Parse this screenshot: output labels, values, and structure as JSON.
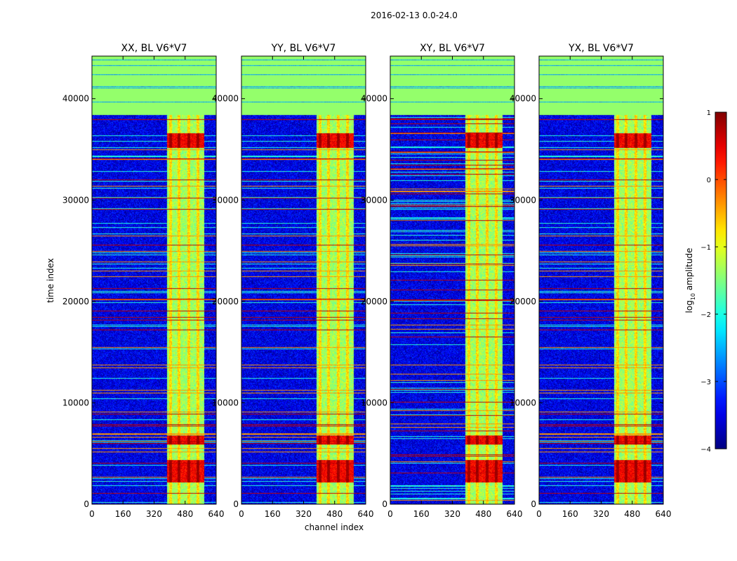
{
  "figure": {
    "suptitle": "2016-02-13 0.0-24.0",
    "xlabel": "channel index",
    "ylabel": "time index"
  },
  "chart_data": {
    "type": "heatmap",
    "panels": [
      {
        "title": "XX, BL V6*V7"
      },
      {
        "title": "YY, BL V6*V7"
      },
      {
        "title": "XY, BL V6*V7"
      },
      {
        "title": "YX, BL V6*V7"
      }
    ],
    "x_range": [
      0,
      640
    ],
    "x_ticks": [
      0,
      160,
      320,
      480,
      640
    ],
    "y_range": [
      0,
      44200
    ],
    "y_ticks": [
      0,
      10000,
      20000,
      30000,
      40000
    ],
    "colorbar": {
      "label": "log",
      "label_sub": "10",
      "label_suffix": " amplitude",
      "range": [
        -4,
        1
      ],
      "ticks": [
        1,
        0,
        -1,
        -2,
        -3,
        -4
      ],
      "tick_labels": [
        "1",
        "0",
        "−1",
        "−2",
        "−3",
        "−4"
      ],
      "colormap": "jet"
    },
    "structure": {
      "flagged_block_start": 38400,
      "flagged_value": -1.4,
      "rfi_channel_band": [
        384,
        576
      ],
      "rfi_bright_channels": [
        402,
        448,
        498,
        545,
        585
      ],
      "strong_rfi_time_bands": [
        [
          2200,
          4400
        ],
        [
          5900,
          6800
        ],
        [
          35200,
          36600
        ]
      ],
      "background_value": -3.5
    }
  }
}
